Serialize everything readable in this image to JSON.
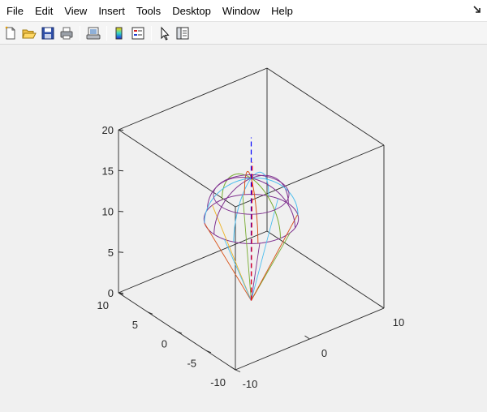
{
  "menu": {
    "items": [
      {
        "label": "File"
      },
      {
        "label": "Edit"
      },
      {
        "label": "View"
      },
      {
        "label": "Insert"
      },
      {
        "label": "Tools"
      },
      {
        "label": "Desktop"
      },
      {
        "label": "Window"
      },
      {
        "label": "Help"
      }
    ],
    "dock_icon": "dock-arrow-icon"
  },
  "toolbar": {
    "buttons": [
      {
        "icon": "new-figure-icon"
      },
      {
        "icon": "open-file-icon"
      },
      {
        "icon": "save-figure-icon"
      },
      {
        "icon": "print-figure-icon"
      },
      {
        "icon": "link-plot-icon"
      },
      {
        "icon": "insert-colorbar-icon"
      },
      {
        "icon": "insert-legend-icon"
      },
      {
        "icon": "edit-plot-icon"
      },
      {
        "icon": "plot-browser-icon"
      }
    ]
  },
  "chart_data": {
    "type": "3d-line",
    "xlim": [
      -10,
      10
    ],
    "ylim": [
      -10,
      10
    ],
    "zlim": [
      0,
      20
    ],
    "x_ticks": [
      "-10",
      "0",
      "10"
    ],
    "y_ticks": [
      "-10",
      "-5",
      "0",
      "5",
      "10"
    ],
    "z_ticks": [
      "0",
      "5",
      "10",
      "15",
      "20"
    ],
    "box": true,
    "grid": false,
    "colors": {
      "purple": "#7e2f8e",
      "teal": "#4dbeee",
      "olive": "#77ac30",
      "red": "#d95319",
      "blue": "#0000ff",
      "dashed_red": "#ff0000",
      "orange": "#edb120"
    },
    "objects": {
      "cone": {
        "apex": [
          0,
          0,
          0
        ],
        "rim_z": 10,
        "radius": 5
      },
      "hemisphere": {
        "center": [
          0,
          0,
          10
        ],
        "radius": 5
      },
      "dashed_lines": [
        {
          "color": "blue",
          "from": [
            0,
            0,
            0
          ],
          "to": [
            0,
            0,
            20
          ]
        },
        {
          "color": "dashed_red",
          "from": [
            0,
            0,
            0
          ],
          "to": [
            -3,
            -4,
            20
          ]
        }
      ]
    }
  }
}
